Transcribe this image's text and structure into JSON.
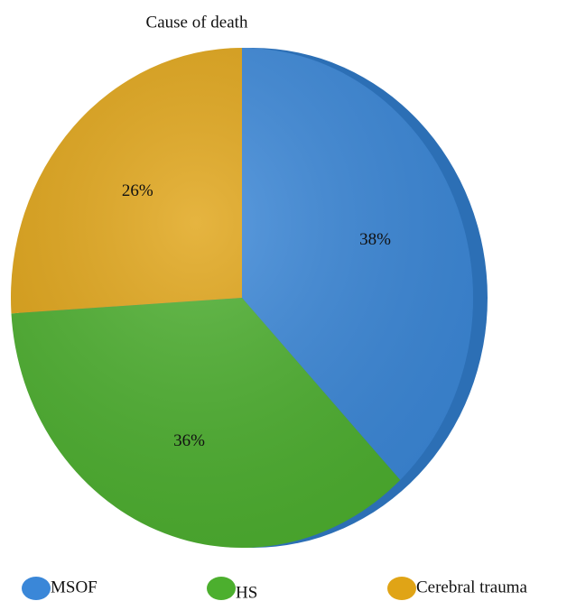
{
  "chart_data": {
    "type": "pie",
    "title": "Cause of death",
    "categories": [
      "MSOF",
      "HS",
      "Cerebral trauma"
    ],
    "values": [
      38,
      36,
      26
    ],
    "value_labels": [
      "38%",
      "36%",
      "26%"
    ],
    "colors": [
      "#3a87d8",
      "#4caf2e",
      "#e0a416"
    ]
  }
}
